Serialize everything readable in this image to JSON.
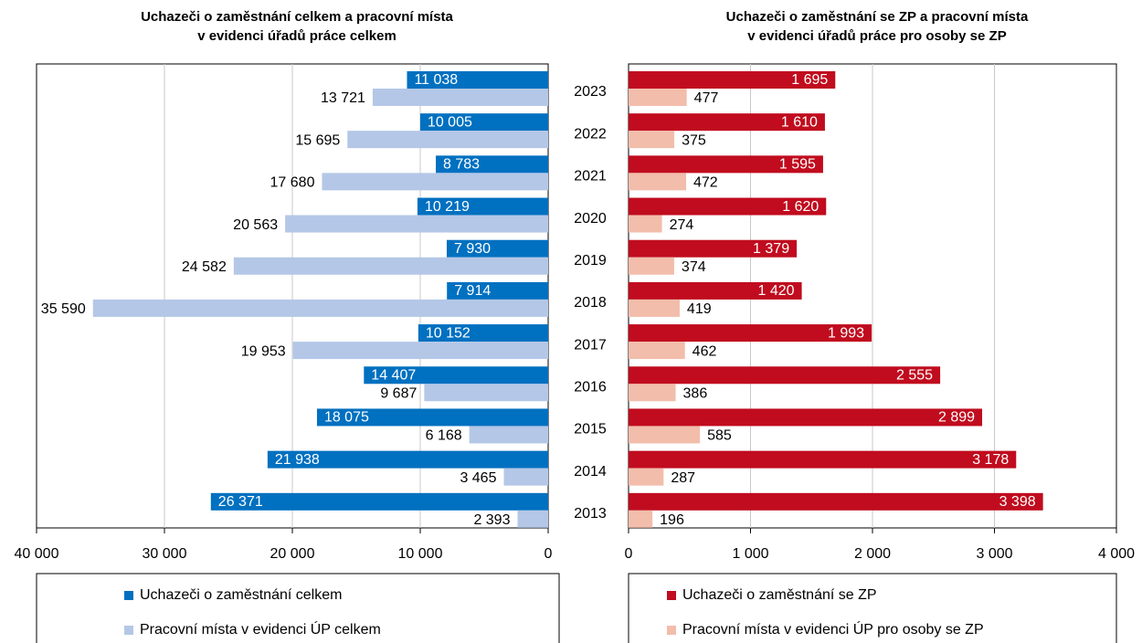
{
  "chart_data": [
    {
      "type": "bar",
      "orientation": "horizontal",
      "title": "Uchazeči o zaměstnání celkem a pracovní místa\nv evidenci úřadů práce celkem",
      "series": [
        {
          "name": "Uchazeči o zaměstnání celkem",
          "color": "#0070c0",
          "values": [
            11038,
            10005,
            8783,
            10219,
            7930,
            7914,
            10152,
            14407,
            18075,
            21938,
            26371
          ],
          "value_labels": [
            "11 038",
            "10 005",
            "8 783",
            "10 219",
            "7 930",
            "7 914",
            "10 152",
            "14 407",
            "18 075",
            "21 938",
            "26 371"
          ]
        },
        {
          "name": "Pracovní místa v evidenci ÚP celkem",
          "color": "#b4c7e7",
          "values": [
            13721,
            15695,
            17680,
            20563,
            24582,
            35590,
            19953,
            9687,
            6168,
            3465,
            2393
          ],
          "value_labels": [
            "13 721",
            "15 695",
            "17 680",
            "20 563",
            "24 582",
            "35 590",
            "19 953",
            "9 687",
            "6 168",
            "3 465",
            "2 393"
          ]
        }
      ],
      "xlim": [
        40000,
        0
      ],
      "xticks": [
        {
          "value": 40000,
          "label": "40 000"
        },
        {
          "value": 30000,
          "label": "30 000"
        },
        {
          "value": 20000,
          "label": "20 000"
        },
        {
          "value": 10000,
          "label": "10 000"
        },
        0
      ],
      "grid": true,
      "legend": "bottom"
    },
    {
      "type": "bar",
      "orientation": "horizontal",
      "title": "Uchazeči o zaměstnání se ZP a pracovní místa\nv evidenci úřadů práce pro osoby se ZP",
      "categories": [
        "2023",
        "2022",
        "2021",
        "2020",
        "2019",
        "2018",
        "2017",
        "2016",
        "2015",
        "2014",
        "2013"
      ],
      "series": [
        {
          "name": "Uchazeči o zaměstnání se ZP",
          "color": "#c00c1e",
          "values": [
            1695,
            1610,
            1595,
            1620,
            1379,
            1420,
            1993,
            2555,
            2899,
            3178,
            3398
          ],
          "value_labels": [
            "1 695",
            "1 610",
            "1 595",
            "1 620",
            "1 379",
            "1 420",
            "1 993",
            "2 555",
            "2 899",
            "3 178",
            "3 398"
          ]
        },
        {
          "name": "Pracovní místa v evidenci ÚP pro osoby se ZP",
          "color": "#f2bdab",
          "values": [
            477,
            375,
            472,
            274,
            374,
            419,
            462,
            386,
            585,
            287,
            196
          ]
        }
      ],
      "xlim": [
        0,
        4000
      ],
      "xticks": [
        0,
        {
          "value": 1000,
          "label": "1 000"
        },
        {
          "value": 2000,
          "label": "2 000"
        },
        {
          "value": 3000,
          "label": "3 000"
        },
        {
          "value": 4000,
          "label": "4 000"
        }
      ],
      "grid": true,
      "legend": "bottom"
    }
  ]
}
